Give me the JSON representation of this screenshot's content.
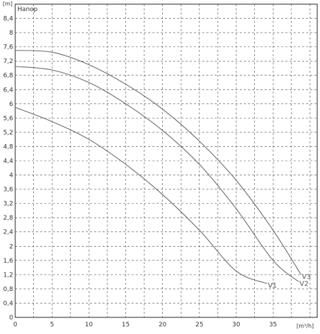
{
  "chart_data": {
    "type": "line",
    "title": "Напор",
    "ylabel": "[m]",
    "xlabel": "[m³/h]",
    "xlim": [
      0,
      41
    ],
    "ylim": [
      0,
      8.8
    ],
    "xticks": [
      0,
      5,
      10,
      15,
      20,
      25,
      30,
      35
    ],
    "yticks": [
      0,
      0.4,
      0.8,
      1.2,
      1.6,
      2,
      2.4,
      2.8,
      3.2,
      3.6,
      4,
      4.4,
      4.8,
      5.2,
      5.6,
      6,
      6.4,
      6.8,
      7.2,
      7.6,
      8,
      8.4
    ],
    "xtick_labels": [
      "0",
      "5",
      "10",
      "15",
      "20",
      "25",
      "30",
      "35"
    ],
    "ytick_labels": [
      "0",
      "0,4",
      "0,8",
      "1,2",
      "1,6",
      "2",
      "2,4",
      "2,8",
      "3,2",
      "3,6",
      "4",
      "4,4",
      "4,8",
      "5,2",
      "5,6",
      "6",
      "6,4",
      "6,8",
      "7,2",
      "7,6",
      "8",
      "8,4"
    ],
    "grid": true,
    "series": [
      {
        "name": "V1",
        "x": [
          0,
          5,
          10,
          15,
          20,
          25,
          30,
          34.2
        ],
        "y": [
          5.9,
          5.5,
          5.0,
          4.3,
          3.45,
          2.45,
          1.3,
          0.95
        ]
      },
      {
        "name": "V2",
        "x": [
          0,
          5,
          10,
          15,
          20,
          25,
          30,
          35,
          38.5
        ],
        "y": [
          7.05,
          6.95,
          6.6,
          6.0,
          5.25,
          4.3,
          3.05,
          1.6,
          1.0
        ]
      },
      {
        "name": "V3",
        "x": [
          0,
          5,
          10,
          15,
          20,
          25,
          30,
          35,
          38.8
        ],
        "y": [
          7.5,
          7.45,
          7.1,
          6.55,
          5.85,
          4.95,
          3.85,
          2.45,
          1.2
        ]
      }
    ]
  }
}
